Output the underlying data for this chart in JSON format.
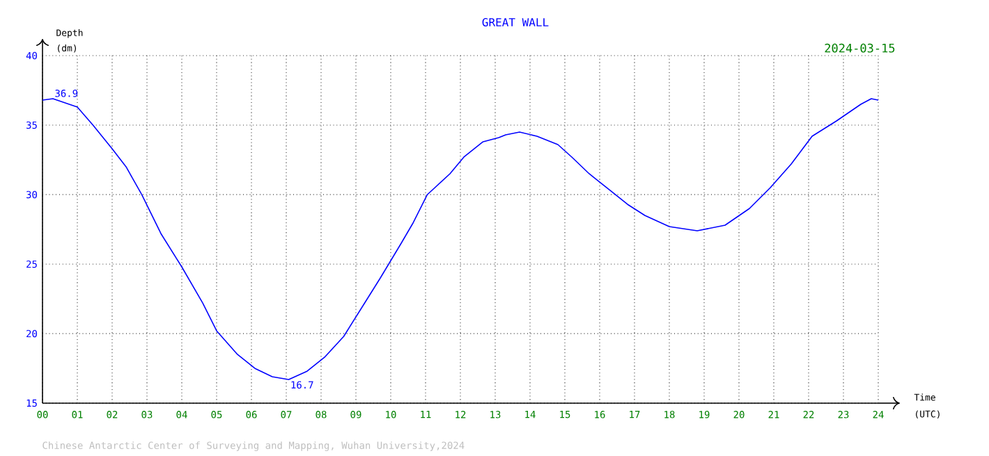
{
  "chart_data": {
    "type": "line",
    "title": "GREAT WALL",
    "xlabel": "Time (UTC)",
    "ylabel": "Depth (dm)",
    "annotations": [
      "2024-03-15",
      "Chinese Antarctic Center of Surveying and Mapping, Wuhan University,2024",
      {
        "text": "36.9",
        "x": 0.3,
        "y": 36.9
      },
      {
        "text": "16.7",
        "x": 7.07,
        "y": 16.7
      }
    ],
    "x": [
      0,
      0.3,
      1.0,
      1.45,
      2.0,
      2.4,
      2.85,
      3.4,
      4.0,
      4.6,
      5.0,
      5.6,
      6.1,
      6.6,
      7.07,
      7.6,
      8.1,
      8.65,
      9.2,
      9.7,
      10.3,
      10.65,
      11.05,
      11.7,
      12.1,
      12.65,
      13.1,
      13.3,
      13.7,
      14.2,
      14.8,
      15.2,
      15.7,
      16.3,
      16.8,
      17.3,
      18.0,
      18.8,
      19.6,
      20.3,
      20.9,
      21.5,
      22.1,
      22.8,
      23.5,
      23.8,
      24
    ],
    "series": [
      {
        "color": "#0000ff",
        "values": [
          36.8,
          36.9,
          36.3,
          35.0,
          33.3,
          32.0,
          30.0,
          27.2,
          24.8,
          22.2,
          20.2,
          18.5,
          17.5,
          16.9,
          16.7,
          17.3,
          18.3,
          19.8,
          22.0,
          24.0,
          26.5,
          28.0,
          30.0,
          31.5,
          32.7,
          33.8,
          34.1,
          34.3,
          34.5,
          34.2,
          33.6,
          32.7,
          31.5,
          30.3,
          29.3,
          28.5,
          27.7,
          27.4,
          27.8,
          29.0,
          30.5,
          32.2,
          34.2,
          35.3,
          36.5,
          36.9,
          36.8
        ]
      }
    ],
    "xlim": [
      0,
      24
    ],
    "ylim": [
      15,
      40
    ],
    "xticks": [
      {
        "value": 0,
        "label": "00"
      },
      {
        "value": 1,
        "label": "01"
      },
      {
        "value": 2,
        "label": "02"
      },
      {
        "value": 3,
        "label": "03"
      },
      {
        "value": 4,
        "label": "04"
      },
      {
        "value": 5,
        "label": "05"
      },
      {
        "value": 6,
        "label": "06"
      },
      {
        "value": 7,
        "label": "07"
      },
      {
        "value": 8,
        "label": "08"
      },
      {
        "value": 9,
        "label": "09"
      },
      10,
      11,
      12,
      13,
      14,
      15,
      16,
      17,
      18,
      19,
      20,
      21,
      22,
      23,
      24
    ],
    "yticks": [
      15,
      20,
      25,
      30,
      35,
      40
    ],
    "grid": true
  }
}
